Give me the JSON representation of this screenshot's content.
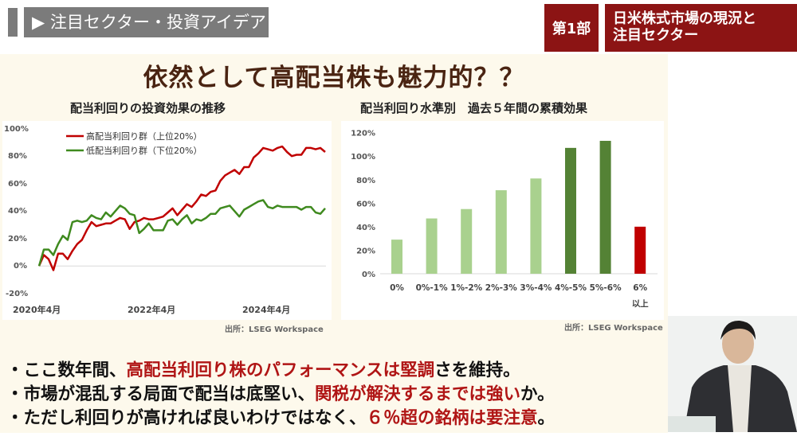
{
  "header": {
    "section_tag": "▶ 注目セクター・投資アイデア",
    "part_label": "第1部",
    "part_title_line1": "日米株式市場の現況と",
    "part_title_line2": "注目セクター"
  },
  "slide": {
    "title": "依然として高配当株も魅力的？？",
    "bullets": [
      {
        "pre": "・ここ数年間、",
        "hl": "高配当利回り株のパフォーマンスは堅調",
        "post": "さを維持。"
      },
      {
        "pre": "・市場が混乱する局面で配当は底堅い、",
        "hl": "関税が解決するまでは強い",
        "post": "か。"
      },
      {
        "pre": "・ただし利回りが高ければ良いわけではなく、",
        "hl": "６％超の銘柄は要注意",
        "post": "。"
      }
    ],
    "colors": {
      "highlight": "#b01515",
      "title": "#4a2412",
      "panel": "#fdf9ec",
      "part_bg": "#8c1414"
    }
  },
  "chart_data": [
    {
      "type": "line",
      "title": "配当利回りの投資効果の推移",
      "source": "出所：LSEG Workspace",
      "x_start": "2020-04",
      "x_end": "2025-04",
      "x_step": "monthly",
      "x_tick_labels": [
        "2020年4月",
        "2022年4月",
        "2024年4月"
      ],
      "y_tick_labels": [
        "100%",
        "80%",
        "60%",
        "40%",
        "20%",
        "0%",
        "-20%"
      ],
      "ylim": [
        -20,
        100
      ],
      "legend": "top-left",
      "grid": false,
      "series": [
        {
          "name": "高配当利回り群（上位20%）",
          "color": "#c00000",
          "values": [
            0,
            8,
            5,
            -3,
            9,
            9,
            5,
            11,
            16,
            19,
            26,
            32,
            29,
            30,
            31,
            31,
            33,
            35,
            34,
            27,
            32,
            33,
            35,
            34,
            34,
            35,
            36,
            39,
            42,
            37,
            41,
            45,
            43,
            47,
            52,
            51,
            54,
            55,
            62,
            66,
            68,
            70,
            67,
            72,
            72,
            79,
            82,
            86,
            85,
            84,
            86,
            87,
            83,
            80,
            81,
            81,
            86,
            86,
            85,
            86,
            83
          ]
        },
        {
          "name": "低配当利回り群（下位20%）",
          "color": "#3f8a1f",
          "values": [
            0,
            12,
            12,
            8,
            16,
            22,
            19,
            32,
            33,
            32,
            33,
            37,
            35,
            34,
            39,
            36,
            40,
            44,
            42,
            38,
            37,
            24,
            27,
            31,
            26,
            26,
            26,
            33,
            34,
            30,
            34,
            37,
            31,
            34,
            33,
            35,
            38,
            38,
            42,
            43,
            44,
            40,
            36,
            41,
            43,
            45,
            47,
            48,
            43,
            42,
            44,
            43,
            43,
            43,
            43,
            41,
            43,
            43,
            39,
            38,
            42
          ]
        }
      ]
    },
    {
      "type": "bar",
      "title": "配当利回り水準別　過去５年間の累積効果",
      "source": "出所：LSEG Workspace",
      "categories": [
        "0%",
        "0%-1%",
        "1%-2%",
        "2%-3%",
        "3%-4%",
        "4%-5%",
        "5%-6%",
        "6%\n以上"
      ],
      "values": [
        29,
        47,
        55,
        71,
        81,
        107,
        113,
        40
      ],
      "bar_colors": [
        "#a9d18e",
        "#a9d18e",
        "#a9d18e",
        "#a9d18e",
        "#a9d18e",
        "#548235",
        "#548235",
        "#c00000"
      ],
      "y_tick_labels": [
        "120%",
        "100%",
        "80%",
        "60%",
        "40%",
        "20%",
        "0%"
      ],
      "ylim": [
        0,
        120
      ],
      "grid": false
    }
  ]
}
